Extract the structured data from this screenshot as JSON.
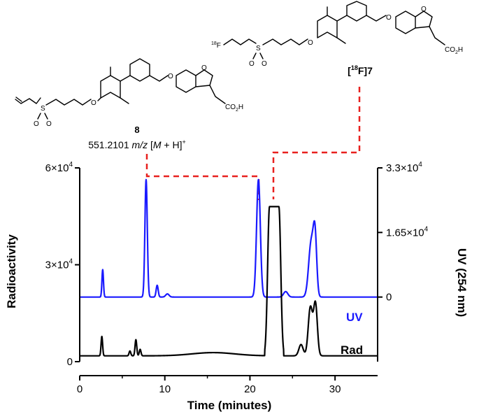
{
  "compounds": {
    "c8": {
      "label": "8",
      "mass_value": "551.2101",
      "mass_unit": "m/z",
      "ion_open": "[",
      "ion_M": "M",
      "ion_close": " + H]",
      "ion_charge": "+",
      "atoms": {
        "s": "S",
        "o1": "O",
        "o2": "O",
        "o3": "O",
        "o4": "O",
        "o5": "O",
        "co2h": "CO",
        "co2h_sub": "2",
        "co2h_h": "H"
      }
    },
    "c7": {
      "bracket_open": "[",
      "isotope": "18",
      "element": "F",
      "bracket_close": "]",
      "number": "7",
      "atoms": {
        "f_iso": "18",
        "f": "F",
        "s": "S",
        "o1": "O",
        "o2": "O",
        "o3": "O",
        "o4": "O",
        "o5": "O",
        "co2h": "CO",
        "co2h_sub": "2",
        "co2h_h": "H"
      }
    }
  },
  "chart_data": {
    "type": "line",
    "xlabel": "Time (minutes)",
    "ylabel_left": "Radioactivity",
    "ylabel_right": "UV (254 nm)",
    "xlim": [
      0,
      35
    ],
    "ylim_left": [
      0,
      60000
    ],
    "ylim_right": [
      -16500,
      33000
    ],
    "x_ticks": [
      0,
      10,
      20,
      30
    ],
    "x_tick_labels": [
      "0",
      "10",
      "20",
      "30"
    ],
    "y_ticks_left": [
      0,
      30000,
      60000
    ],
    "y_tick_labels_left": [
      {
        "mant": "0",
        "exp": ""
      },
      {
        "mant": "3×10",
        "exp": "4"
      },
      {
        "mant": "6×10",
        "exp": "4"
      }
    ],
    "y_ticks_right": [
      0,
      16500,
      33000
    ],
    "y_tick_labels_right": [
      {
        "mant": "0",
        "exp": ""
      },
      {
        "mant": "1.65×10",
        "exp": "4"
      },
      {
        "mant": "3.3×10",
        "exp": "4"
      }
    ],
    "series": [
      {
        "name": "UV",
        "axis": "right",
        "color": "#1a1aff",
        "baseline": 0,
        "peaks": [
          {
            "x": 2.7,
            "h": 7000,
            "w": 0.09
          },
          {
            "x": 7.8,
            "h": 30000,
            "w": 0.14
          },
          {
            "x": 9.1,
            "h": 3000,
            "w": 0.12
          },
          {
            "x": 10.3,
            "h": 800,
            "w": 0.2
          },
          {
            "x": 21.0,
            "h": 30000,
            "w": 0.22
          },
          {
            "x": 24.2,
            "h": 1400,
            "w": 0.25
          },
          {
            "x": 27.2,
            "h": 14000,
            "w": 0.3
          },
          {
            "x": 27.65,
            "h": 14000,
            "w": 0.2
          }
        ]
      },
      {
        "name": "Rad",
        "axis": "left",
        "color": "#000000",
        "baseline": 1800,
        "peaks": [
          {
            "x": 2.6,
            "h": 6000,
            "w": 0.09
          },
          {
            "x": 5.9,
            "h": 1500,
            "w": 0.1
          },
          {
            "x": 6.6,
            "h": 5000,
            "w": 0.1
          },
          {
            "x": 7.1,
            "h": 2000,
            "w": 0.1
          },
          {
            "x": 15.7,
            "h": 1000,
            "w": 2.5
          },
          {
            "x": 26.0,
            "h": 3500,
            "w": 0.25
          },
          {
            "x": 27.1,
            "h": 15000,
            "w": 0.25
          },
          {
            "x": 27.7,
            "h": 16000,
            "w": 0.22
          }
        ],
        "saturated_peak": {
          "x_start": 22.3,
          "x_end": 23.4,
          "top": 48000,
          "rise": 0.55
        }
      }
    ],
    "annotations": [
      {
        "target": "8",
        "x": 7.8
      },
      {
        "target": "[18F]7",
        "x": 21.0
      }
    ]
  }
}
